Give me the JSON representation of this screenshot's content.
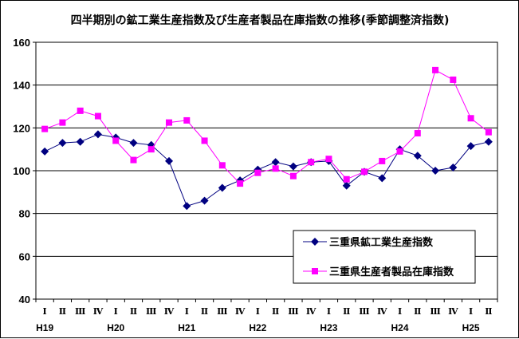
{
  "chart_data": {
    "type": "line",
    "title": "四半期別の鉱工業生産指数及び生産者製品在庫指数の推移(季節調整済指数)",
    "xlabel": "",
    "ylabel": "",
    "ylim": [
      40,
      160
    ],
    "yticks": [
      40,
      60,
      80,
      100,
      120,
      140,
      160
    ],
    "grid": true,
    "legend_position": "bottom-right",
    "quarters": [
      "Ⅰ",
      "Ⅱ",
      "Ⅲ",
      "Ⅳ",
      "Ⅰ",
      "Ⅱ",
      "Ⅲ",
      "Ⅳ",
      "Ⅰ",
      "Ⅱ",
      "Ⅲ",
      "Ⅳ",
      "Ⅰ",
      "Ⅱ",
      "Ⅲ",
      "Ⅳ",
      "Ⅰ",
      "Ⅱ",
      "Ⅲ",
      "Ⅳ",
      "Ⅰ",
      "Ⅱ",
      "Ⅲ",
      "Ⅳ",
      "Ⅰ",
      "Ⅱ"
    ],
    "years": [
      {
        "label": "H19",
        "index": 0
      },
      {
        "label": "H20",
        "index": 4
      },
      {
        "label": "H21",
        "index": 8
      },
      {
        "label": "H22",
        "index": 12
      },
      {
        "label": "H23",
        "index": 16
      },
      {
        "label": "H24",
        "index": 20
      },
      {
        "label": "H25",
        "index": 24
      }
    ],
    "series": [
      {
        "name": "三重県鉱工業生産指数",
        "color": "#000080",
        "marker": "diamond",
        "values": [
          109,
          113,
          113.5,
          117,
          115.5,
          113,
          112,
          104.5,
          83.5,
          86,
          92,
          95.5,
          100.5,
          104,
          102,
          104,
          104.5,
          93,
          99.5,
          96.5,
          110,
          107,
          100,
          101.5,
          111.5,
          113.5
        ]
      },
      {
        "name": "三重県生産者製品在庫指数",
        "color": "#FF00FF",
        "marker": "square",
        "values": [
          119.5,
          122.5,
          128,
          125.5,
          114,
          105,
          110,
          122.5,
          123.5,
          114,
          102.5,
          94,
          99,
          101,
          97.5,
          104,
          105.5,
          96,
          99.5,
          104.5,
          109,
          117.5,
          147,
          142.5,
          124.5,
          118
        ]
      }
    ]
  }
}
